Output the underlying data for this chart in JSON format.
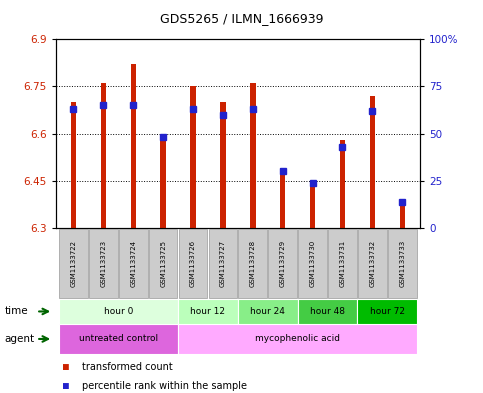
{
  "title": "GDS5265 / ILMN_1666939",
  "samples": [
    "GSM1133722",
    "GSM1133723",
    "GSM1133724",
    "GSM1133725",
    "GSM1133726",
    "GSM1133727",
    "GSM1133728",
    "GSM1133729",
    "GSM1133730",
    "GSM1133731",
    "GSM1133732",
    "GSM1133733"
  ],
  "transformed_count": [
    6.7,
    6.76,
    6.82,
    6.6,
    6.75,
    6.7,
    6.76,
    6.49,
    6.44,
    6.58,
    6.72,
    6.38
  ],
  "percentile_rank": [
    63,
    65,
    65,
    48,
    63,
    60,
    63,
    30,
    24,
    43,
    62,
    14
  ],
  "ylim_left": [
    6.3,
    6.9
  ],
  "ylim_right": [
    0,
    100
  ],
  "yticks_left": [
    6.3,
    6.45,
    6.6,
    6.75,
    6.9
  ],
  "yticks_right": [
    0,
    25,
    50,
    75,
    100
  ],
  "ytick_labels_left": [
    "6.3",
    "6.45",
    "6.6",
    "6.75",
    "6.9"
  ],
  "ytick_labels_right": [
    "0",
    "25",
    "50",
    "75",
    "100%"
  ],
  "bar_color": "#cc2200",
  "dot_color": "#2222cc",
  "time_groups": [
    {
      "label": "hour 0",
      "start": 0,
      "end": 3,
      "color": "#ddffdd"
    },
    {
      "label": "hour 12",
      "start": 4,
      "end": 5,
      "color": "#bbffbb"
    },
    {
      "label": "hour 24",
      "start": 6,
      "end": 7,
      "color": "#88ee88"
    },
    {
      "label": "hour 48",
      "start": 8,
      "end": 9,
      "color": "#44cc44"
    },
    {
      "label": "hour 72",
      "start": 10,
      "end": 11,
      "color": "#00bb00"
    }
  ],
  "agent_groups": [
    {
      "label": "untreated control",
      "start": 0,
      "end": 3,
      "color": "#dd66dd"
    },
    {
      "label": "mycophenolic acid",
      "start": 4,
      "end": 11,
      "color": "#ffaaff"
    }
  ],
  "legend_items": [
    {
      "color": "#cc2200",
      "label": "transformed count"
    },
    {
      "color": "#2222cc",
      "label": "percentile rank within the sample"
    }
  ],
  "background_color": "#ffffff",
  "grid_color": "#000000",
  "ybaseline": 6.3,
  "bar_width": 0.18,
  "dot_size": 4
}
